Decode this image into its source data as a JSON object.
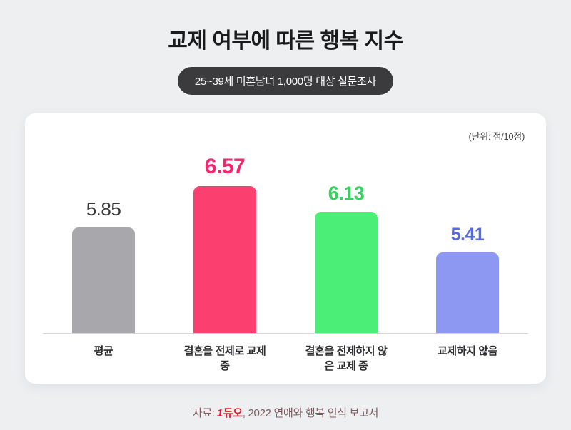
{
  "page": {
    "title": "교제 여부에 따른 행복 지수",
    "badge": "25~39세 미혼남녀 1,000명 대상 설문조사",
    "unit_note": "(단위: 점/10점)",
    "footer": {
      "prefix": "자료:",
      "logo_mark": "1",
      "logo_text": "듀오",
      "suffix": ", 2022 연애와 행복 인식 보고서"
    }
  },
  "chart_data": {
    "type": "bar",
    "title": "교제 여부에 따른 행복 지수",
    "subtitle": "25~39세 미혼남녀 1,000명 대상 설문조사",
    "unit": "점/10점",
    "categories": [
      "평균",
      "결혼을 전제로 교제 중",
      "결혼을 전제하지 않은 교제 중",
      "교제하지 않음"
    ],
    "values": [
      5.85,
      6.57,
      6.13,
      5.41
    ],
    "bar_colors": [
      "#a8a8ac",
      "#fb3f6e",
      "#4bee77",
      "#8d98f3"
    ],
    "label_colors": [
      "#3a3a3c",
      "#f5256d",
      "#35d15f",
      "#5668e2"
    ],
    "baseline": 4,
    "ylim": [
      4,
      7
    ],
    "grid": false,
    "legend": false
  }
}
